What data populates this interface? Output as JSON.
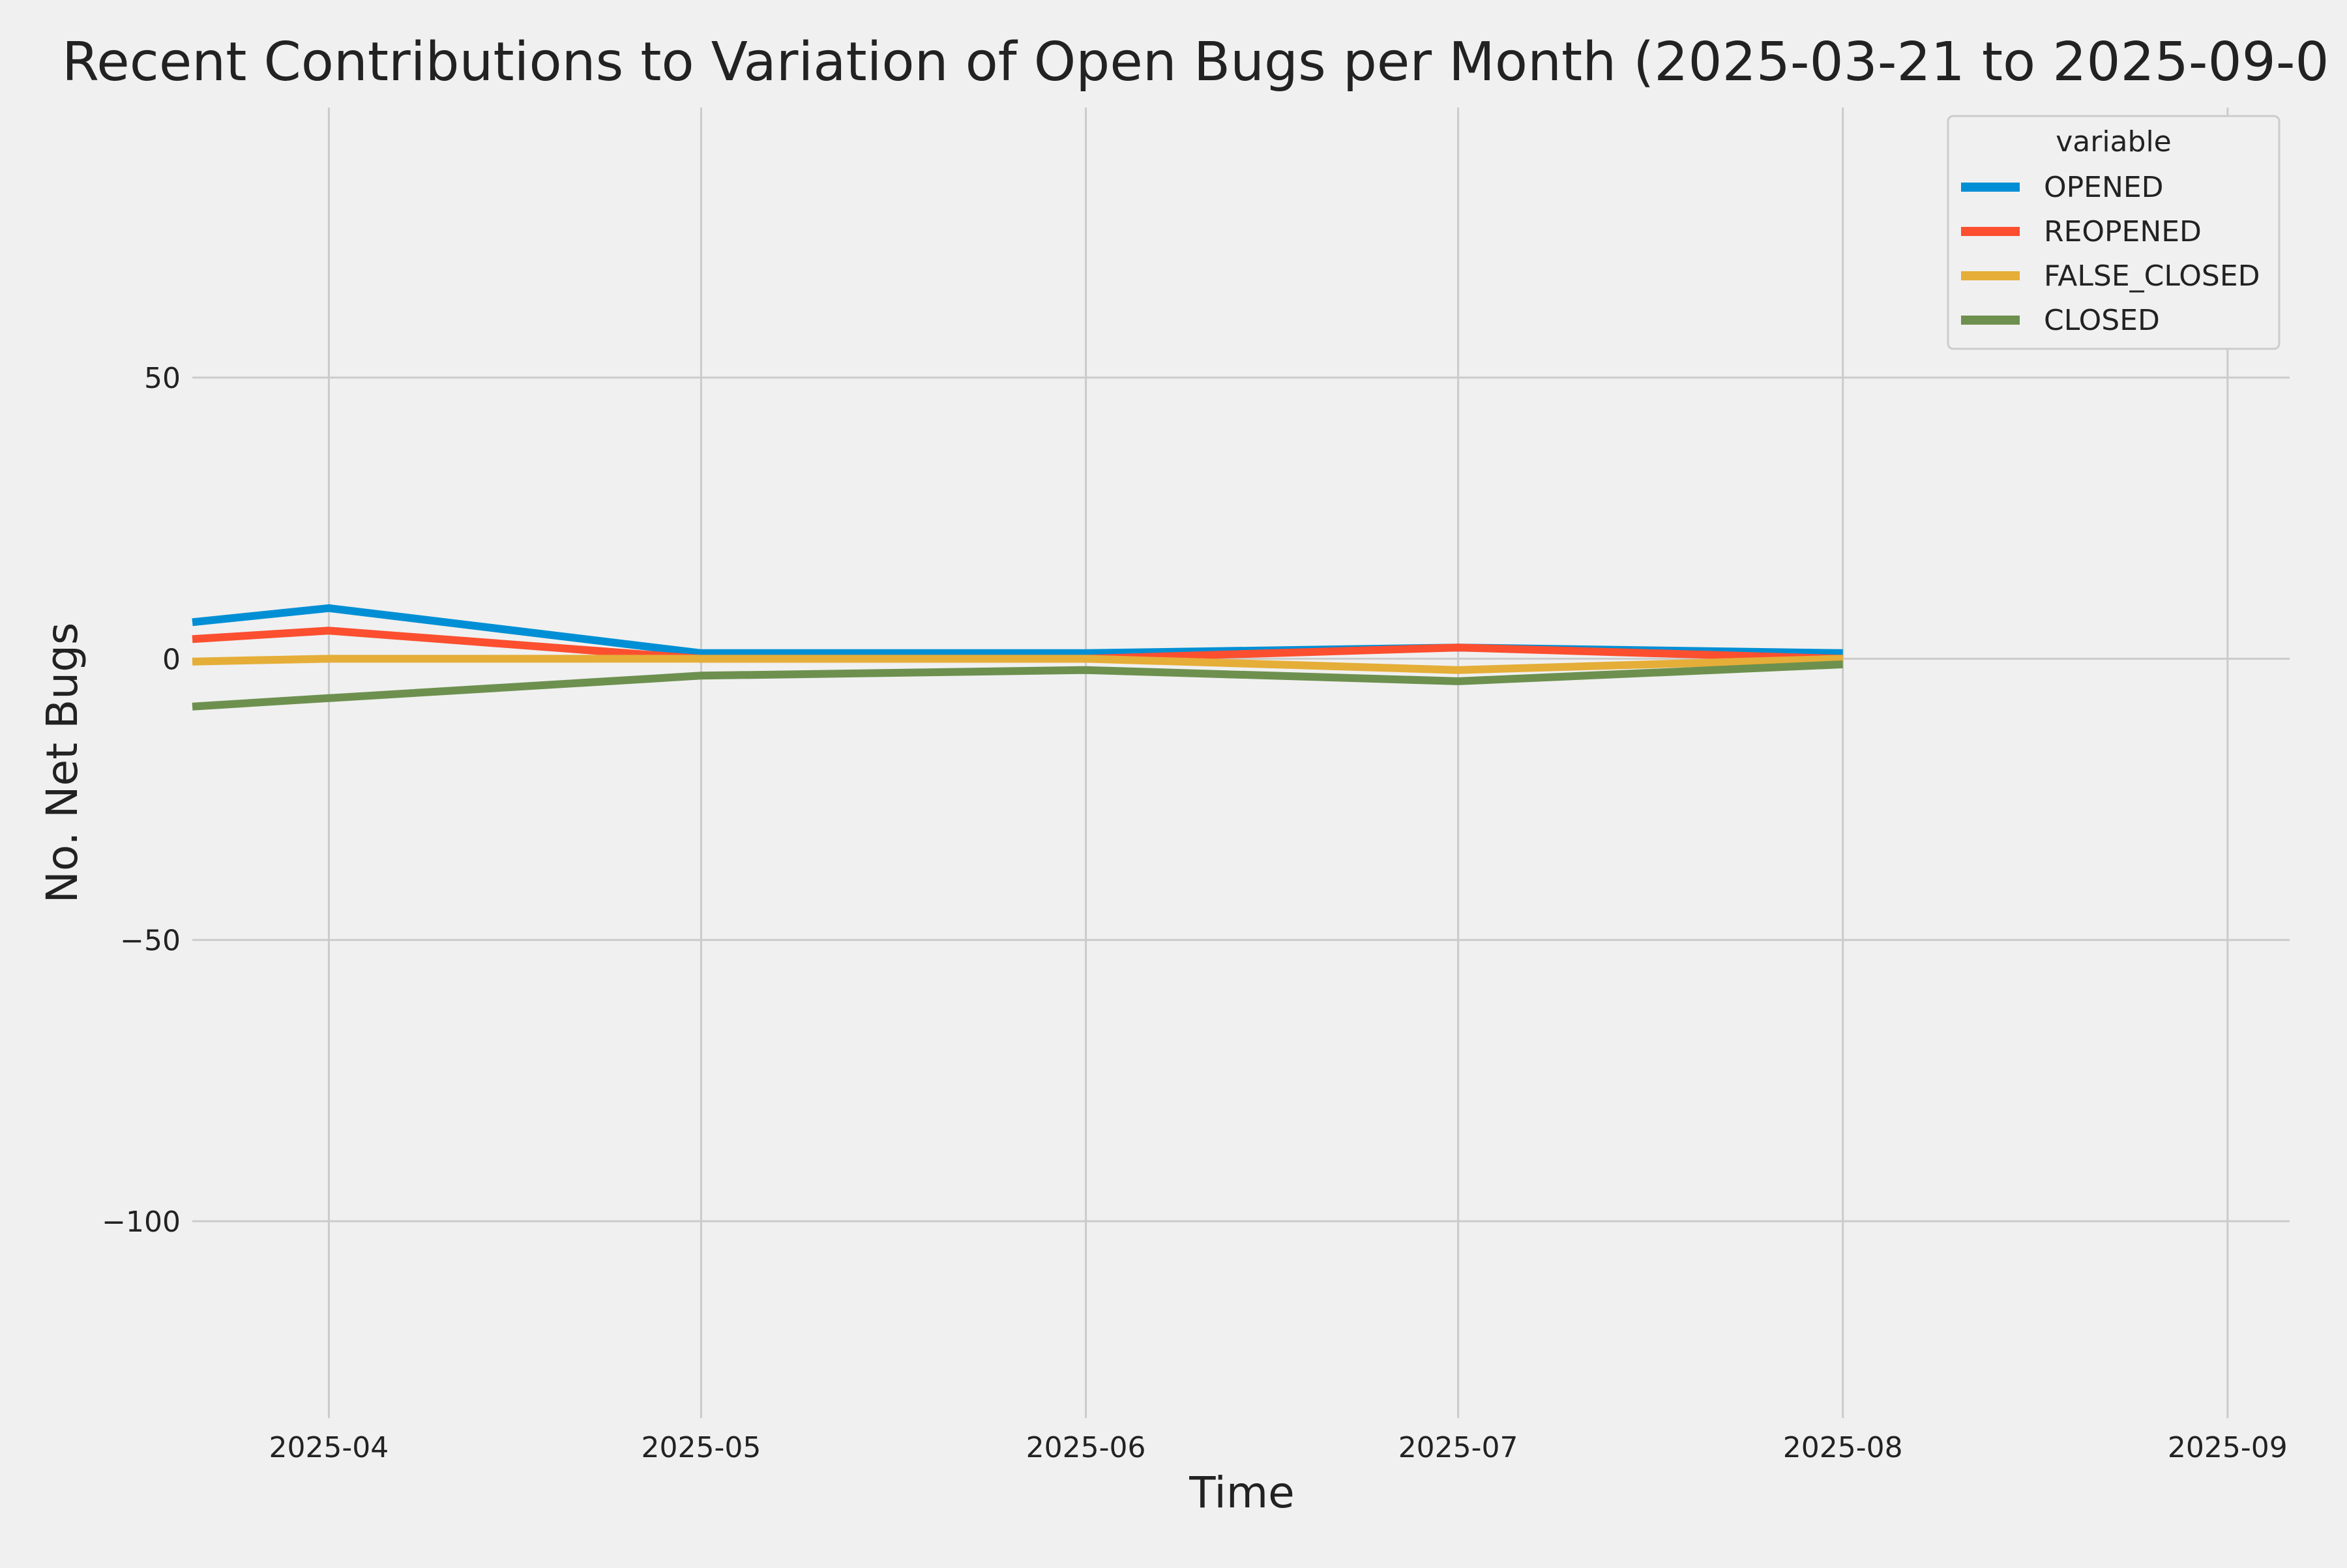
{
  "figure": {
    "background": "#f0f0f0",
    "grid_color": "#cbcbcb"
  },
  "chart_data": {
    "type": "line",
    "title": "Recent Contributions to Variation of Open Bugs per Month (2025-03-21 to 2025-09-0",
    "xlabel": "Time",
    "ylabel": "No. Net Bugs",
    "x_is_date": true,
    "xlim": [
      "2025-03-21",
      "2025-09-06"
    ],
    "ylim": [
      -135,
      98
    ],
    "x_ticks": [
      "2025-04-01",
      "2025-05-01",
      "2025-06-01",
      "2025-07-01",
      "2025-08-01",
      "2025-09-01"
    ],
    "x_tick_labels": [
      "2025-04",
      "2025-05",
      "2025-06",
      "2025-07",
      "2025-08",
      "2025-09"
    ],
    "y_ticks": [
      50,
      0,
      -50,
      -100
    ],
    "y_tick_labels": [
      "50",
      "0",
      "−50",
      "−100"
    ],
    "grid": true,
    "legend": {
      "title": "variable",
      "placement": "top-right"
    },
    "x": [
      "2025-03-21",
      "2025-04-01",
      "2025-05-01",
      "2025-06-01",
      "2025-07-01",
      "2025-08-01"
    ],
    "series": [
      {
        "name": "OPENED",
        "color": "#008fd5",
        "values": [
          6.5,
          9,
          1,
          1,
          2,
          1
        ]
      },
      {
        "name": "REOPENED",
        "color": "#fc4f30",
        "values": [
          3.5,
          5,
          0,
          0,
          2,
          0
        ]
      },
      {
        "name": "FALSE_CLOSED",
        "color": "#e5ae38",
        "values": [
          -0.5,
          0,
          0,
          0,
          -2,
          0
        ]
      },
      {
        "name": "CLOSED",
        "color": "#6d904f",
        "values": [
          -8.5,
          -7,
          -3,
          -2,
          -4,
          -1
        ]
      }
    ]
  }
}
